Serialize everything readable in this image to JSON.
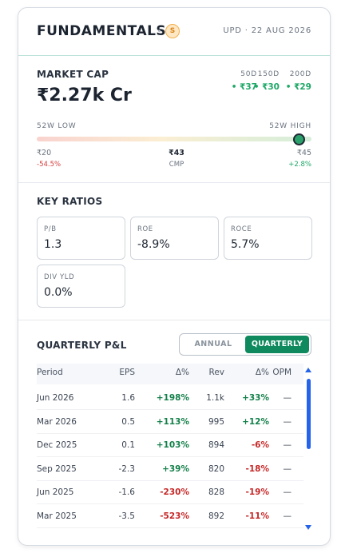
{
  "header": {
    "title": "FUNDAMENTALS",
    "badge": "S",
    "updated": "UPD · 22 AUG 2026"
  },
  "market_cap": {
    "label": "MARKET CAP",
    "value": "₹2.27k Cr",
    "averages": [
      {
        "label": "50D",
        "value": "• ₹37"
      },
      {
        "label": "150D",
        "value": "• ₹30"
      },
      {
        "label": "200D",
        "value": "• ₹29"
      }
    ]
  },
  "range": {
    "low_label": "52W LOW",
    "high_label": "52W HIGH",
    "low": "₹20",
    "low_change": "-54.5%",
    "cmp": "₹43",
    "cmp_label": "CMP",
    "high": "₹45",
    "high_change": "+2.8%"
  },
  "ratios": {
    "title": "KEY RATIOS",
    "items": [
      {
        "label": "P/B",
        "value": "1.3"
      },
      {
        "label": "ROE",
        "value": "-8.9%"
      },
      {
        "label": "ROCE",
        "value": "5.7%"
      },
      {
        "label": "DIV YLD",
        "value": "0.0%"
      }
    ]
  },
  "pl": {
    "title": "QUARTERLY P&L",
    "toggle": [
      "ANNUAL",
      "QUARTERLY"
    ],
    "columns": [
      "Period",
      "EPS",
      "Δ%",
      "Rev",
      "Δ%",
      "OPM"
    ],
    "rows": [
      [
        "Jun 2026",
        "1.6",
        "+198%",
        "1.1k",
        "+33%",
        "—"
      ],
      [
        "Mar 2026",
        "0.5",
        "+113%",
        "995",
        "+12%",
        "—"
      ],
      [
        "Dec 2025",
        "0.1",
        "+103%",
        "894",
        "-6%",
        "—"
      ],
      [
        "Sep 2025",
        "-2.3",
        "+39%",
        "820",
        "-18%",
        "—"
      ],
      [
        "Jun 2025",
        "-1.6",
        "-230%",
        "828",
        "-19%",
        "—"
      ],
      [
        "Mar 2025",
        "-3.5",
        "-523%",
        "892",
        "-11%",
        "—"
      ]
    ]
  }
}
